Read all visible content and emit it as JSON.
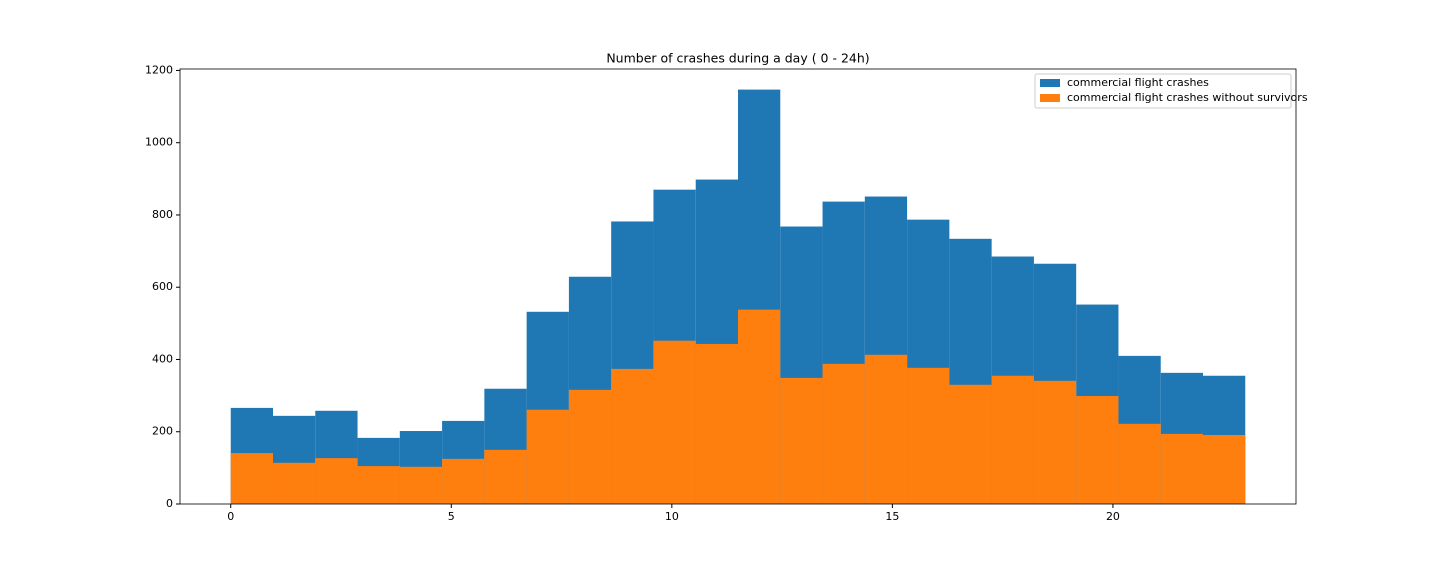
{
  "chart_data": {
    "type": "histogram",
    "title": "Number of crashes during a day ( 0 - 24h)",
    "bins": [
      0,
      0.9583,
      1.9167,
      2.875,
      3.8333,
      4.7917,
      5.75,
      6.7083,
      7.6667,
      8.625,
      9.5833,
      10.5417,
      11.5,
      12.4583,
      13.4167,
      14.375,
      15.3333,
      16.2917,
      17.25,
      18.2083,
      19.1667,
      20.125,
      21.0833,
      22.0417,
      23
    ],
    "series": [
      {
        "name": "commercial flight crashes",
        "color": "#1f77b4",
        "values": [
          266,
          244,
          258,
          183,
          202,
          230,
          319,
          532,
          629,
          782,
          870,
          898,
          1147,
          768,
          837,
          851,
          787,
          734,
          685,
          665,
          552,
          410,
          363,
          355
        ]
      },
      {
        "name": "commercial flight crashes without survivors",
        "color": "#ff7f0e",
        "values": [
          141,
          114,
          127,
          105,
          103,
          125,
          150,
          261,
          316,
          374,
          452,
          443,
          538,
          349,
          388,
          413,
          377,
          330,
          355,
          341,
          299,
          222,
          194,
          191
        ]
      }
    ],
    "xlim": [
      -1.15,
      24.15
    ],
    "xticks": [
      0,
      5,
      10,
      15,
      20
    ],
    "ylim": [
      0,
      1204
    ],
    "yticks": [
      0,
      200,
      400,
      600,
      800,
      1000,
      1200
    ],
    "legend": "upper right"
  }
}
